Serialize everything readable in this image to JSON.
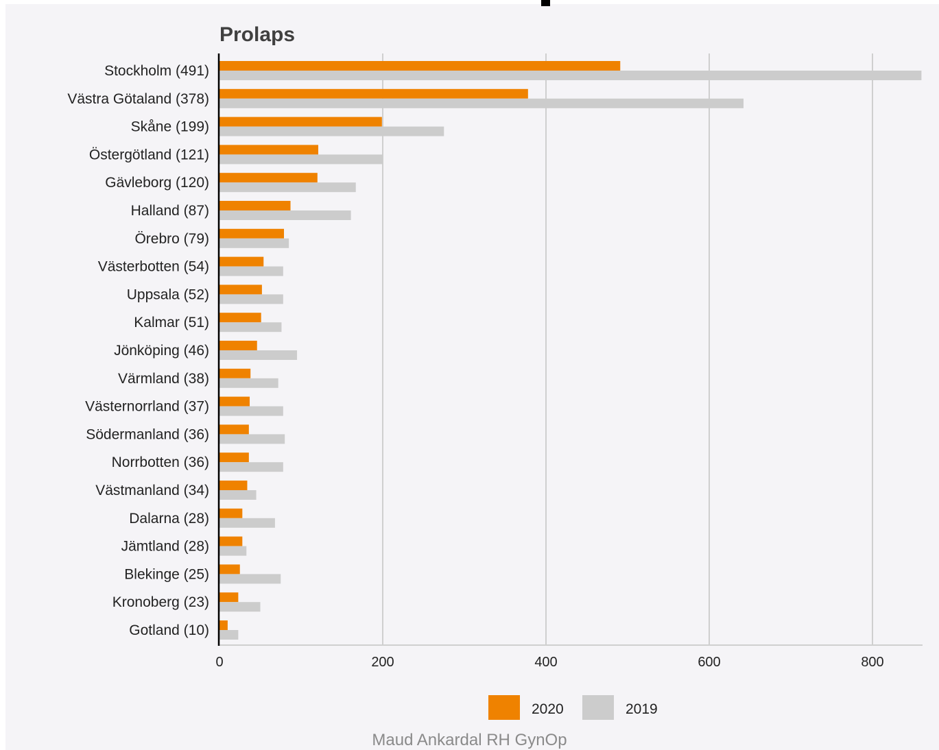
{
  "page": {
    "credit": "Maud Ankardal  RH GynOp"
  },
  "colors": {
    "series_2020": "#ef8200",
    "series_2019": "#cccccc",
    "grid": "#cfcfcf",
    "axis": "#000000",
    "text": "#222222"
  },
  "chart_data": {
    "type": "bar",
    "orientation": "horizontal",
    "title": "Prolaps",
    "xlabel": "",
    "ylabel": "",
    "xlim": [
      0,
      860
    ],
    "xticks": [
      0,
      200,
      400,
      600,
      800
    ],
    "grid": true,
    "legend_position": "bottom",
    "categories": [
      "Stockholm (491)",
      "Västra Götaland (378)",
      "Skåne (199)",
      "Östergötland (121)",
      "Gävleborg (120)",
      "Halland (87)",
      "Örebro (79)",
      "Västerbotten (54)",
      "Uppsala (52)",
      "Kalmar (51)",
      "Jönköping (46)",
      "Värmland (38)",
      "Västernorrland (37)",
      "Södermanland (36)",
      "Norrbotten (36)",
      "Västmanland (34)",
      "Dalarna (28)",
      "Jämtland (28)",
      "Blekinge (25)",
      "Kronoberg (23)",
      "Gotland (10)"
    ],
    "series": [
      {
        "name": "2020",
        "color": "#ef8200",
        "values": [
          491,
          378,
          199,
          121,
          120,
          87,
          79,
          54,
          52,
          51,
          46,
          38,
          37,
          36,
          36,
          34,
          28,
          28,
          25,
          23,
          10
        ]
      },
      {
        "name": "2019",
        "color": "#cccccc",
        "values": [
          860,
          642,
          275,
          200,
          167,
          161,
          85,
          78,
          78,
          76,
          95,
          72,
          78,
          80,
          78,
          45,
          68,
          33,
          75,
          50,
          23
        ]
      }
    ]
  }
}
